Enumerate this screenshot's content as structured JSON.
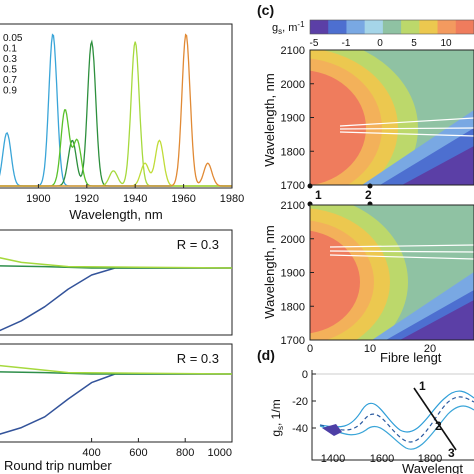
{
  "panels": {
    "c_label": "(c)",
    "d_label": "(d)"
  },
  "colorbar": {
    "label_main": "g",
    "label_sub": "s",
    "label_unit": ", m",
    "label_sup": "-1",
    "ticks": [
      "-5",
      "-1",
      "0",
      "5",
      "10"
    ],
    "colors": [
      "#5b3fa6",
      "#4d6fd0",
      "#79a8e3",
      "#a5d5e8",
      "#8fc2a3",
      "#bcd86b",
      "#ecc84f",
      "#f39a5f",
      "#ef7c5d"
    ]
  },
  "chart_data": [
    {
      "type": "line",
      "panel": "spectra",
      "xlabel": "Wavelength, nm",
      "ylabel": "",
      "xlim": [
        1880,
        1980
      ],
      "x_ticks": [
        "1900",
        "1920",
        "1940",
        "1960",
        "1980"
      ],
      "legend": [
        "0.05",
        "0.1",
        "0.3",
        "0.5",
        "0.7",
        "0.9"
      ],
      "series": [
        {
          "name": "0.05",
          "color": "#3aa5d8",
          "peaks": [
            {
              "x": 1887,
              "h": 0.35
            },
            {
              "x": 1906,
              "h": 1.0
            }
          ]
        },
        {
          "name": "0.1",
          "color": "#2d8f3d",
          "peaks": [
            {
              "x": 1914,
              "h": 0.3
            },
            {
              "x": 1922,
              "h": 0.95
            }
          ]
        },
        {
          "name": "0.3",
          "color": "#59c12a",
          "peaks": [
            {
              "x": 1911,
              "h": 0.5
            },
            {
              "x": 1916,
              "h": 0.3
            }
          ]
        },
        {
          "name": "0.5",
          "color": "#a6d93d",
          "peaks": [
            {
              "x": 1940,
              "h": 0.95
            },
            {
              "x": 1931,
              "h": 0.1
            }
          ]
        },
        {
          "name": "0.7",
          "color": "#c0dc38",
          "peaks": [
            {
              "x": 1950,
              "h": 0.3
            },
            {
              "x": 1944,
              "h": 0.15
            }
          ]
        },
        {
          "name": "0.9",
          "color": "#e18a35",
          "peaks": [
            {
              "x": 1961,
              "h": 1.0
            },
            {
              "x": 1970,
              "h": 0.15
            }
          ]
        }
      ]
    },
    {
      "type": "line",
      "panel": "round-trip-upper",
      "annotation": "R = 0.3",
      "xlim": [
        0,
        1000
      ],
      "series": [
        {
          "color": "#33539a",
          "x": [
            0,
            100,
            200,
            300,
            400,
            500,
            600,
            800,
            1000
          ],
          "y": [
            -0.9,
            -0.75,
            -0.55,
            -0.3,
            -0.1,
            0,
            0,
            0,
            0
          ]
        },
        {
          "color": "#2e8e4a",
          "x": [
            0,
            200,
            400,
            1000
          ],
          "y": [
            0.03,
            0.02,
            0,
            0
          ]
        },
        {
          "color": "#a6d93d",
          "x": [
            0,
            100,
            300,
            1000
          ],
          "y": [
            0.15,
            0.08,
            0.02,
            0
          ]
        }
      ]
    },
    {
      "type": "line",
      "panel": "round-trip-lower",
      "annotation": "R = 0.3",
      "xlabel": "Round trip number",
      "xlim": [
        0,
        1000
      ],
      "x_ticks": [
        "400",
        "600",
        "800",
        "1000"
      ],
      "series": [
        {
          "color": "#33539a",
          "x": [
            0,
            100,
            200,
            300,
            400,
            500,
            600,
            800,
            1000
          ],
          "y": [
            -0.85,
            -0.75,
            -0.6,
            -0.35,
            -0.12,
            0,
            0,
            0,
            0
          ]
        },
        {
          "color": "#2e8e4a",
          "x": [
            0,
            200,
            400,
            1000
          ],
          "y": [
            0.03,
            0.02,
            0,
            0
          ]
        },
        {
          "color": "#a6d93d",
          "x": [
            0,
            150,
            300,
            1000
          ],
          "y": [
            0.12,
            0.07,
            0.02,
            0
          ]
        }
      ]
    },
    {
      "type": "heatmap",
      "panel": "c-upper",
      "ylabel": "Wavelength, nm",
      "ylim": [
        1700,
        2100
      ],
      "y_ticks": [
        "2100",
        "2000",
        "1900",
        "1800",
        "1700"
      ],
      "markers": [
        "1",
        "2"
      ],
      "marker_x": [
        0,
        10
      ]
    },
    {
      "type": "heatmap",
      "panel": "c-lower",
      "ylabel": "Wavelength, nm",
      "xlabel": "Fibre lengt",
      "ylim": [
        1700,
        2100
      ],
      "y_ticks": [
        "2100",
        "2000",
        "1900",
        "1800",
        "1700"
      ],
      "x_ticks": [
        "0",
        "10",
        "20"
      ]
    },
    {
      "type": "line",
      "panel": "d",
      "ylabel_main": "g",
      "ylabel_sub": "s",
      "ylabel_unit": ", 1/m",
      "xlabel": "Wavelengt",
      "y_ticks": [
        "0",
        "-20",
        "-40"
      ],
      "x_ticks": [
        "1400",
        "1600",
        "1800"
      ],
      "curve_labels": [
        "1",
        "2",
        "3"
      ]
    }
  ]
}
